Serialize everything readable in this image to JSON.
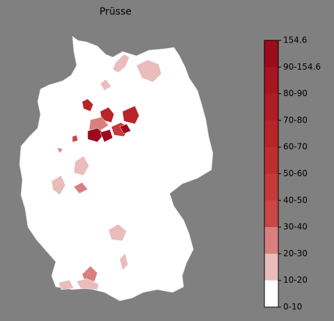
{
  "title": "Prüsse",
  "colorbar": {
    "labels": [
      "154.6",
      "90-154.6",
      "80-90",
      "70-80",
      "60-70",
      "50-60",
      "40-50",
      "30-40",
      "20-30",
      "10-20",
      "0-10"
    ],
    "colors": [
      "#9c0a1e",
      "#a8141f",
      "#b01c24",
      "#b82428",
      "#be2e2e",
      "#c43a38",
      "#c84644",
      "#d88080",
      "#ebbcbc",
      "#ffffff"
    ]
  }
}
